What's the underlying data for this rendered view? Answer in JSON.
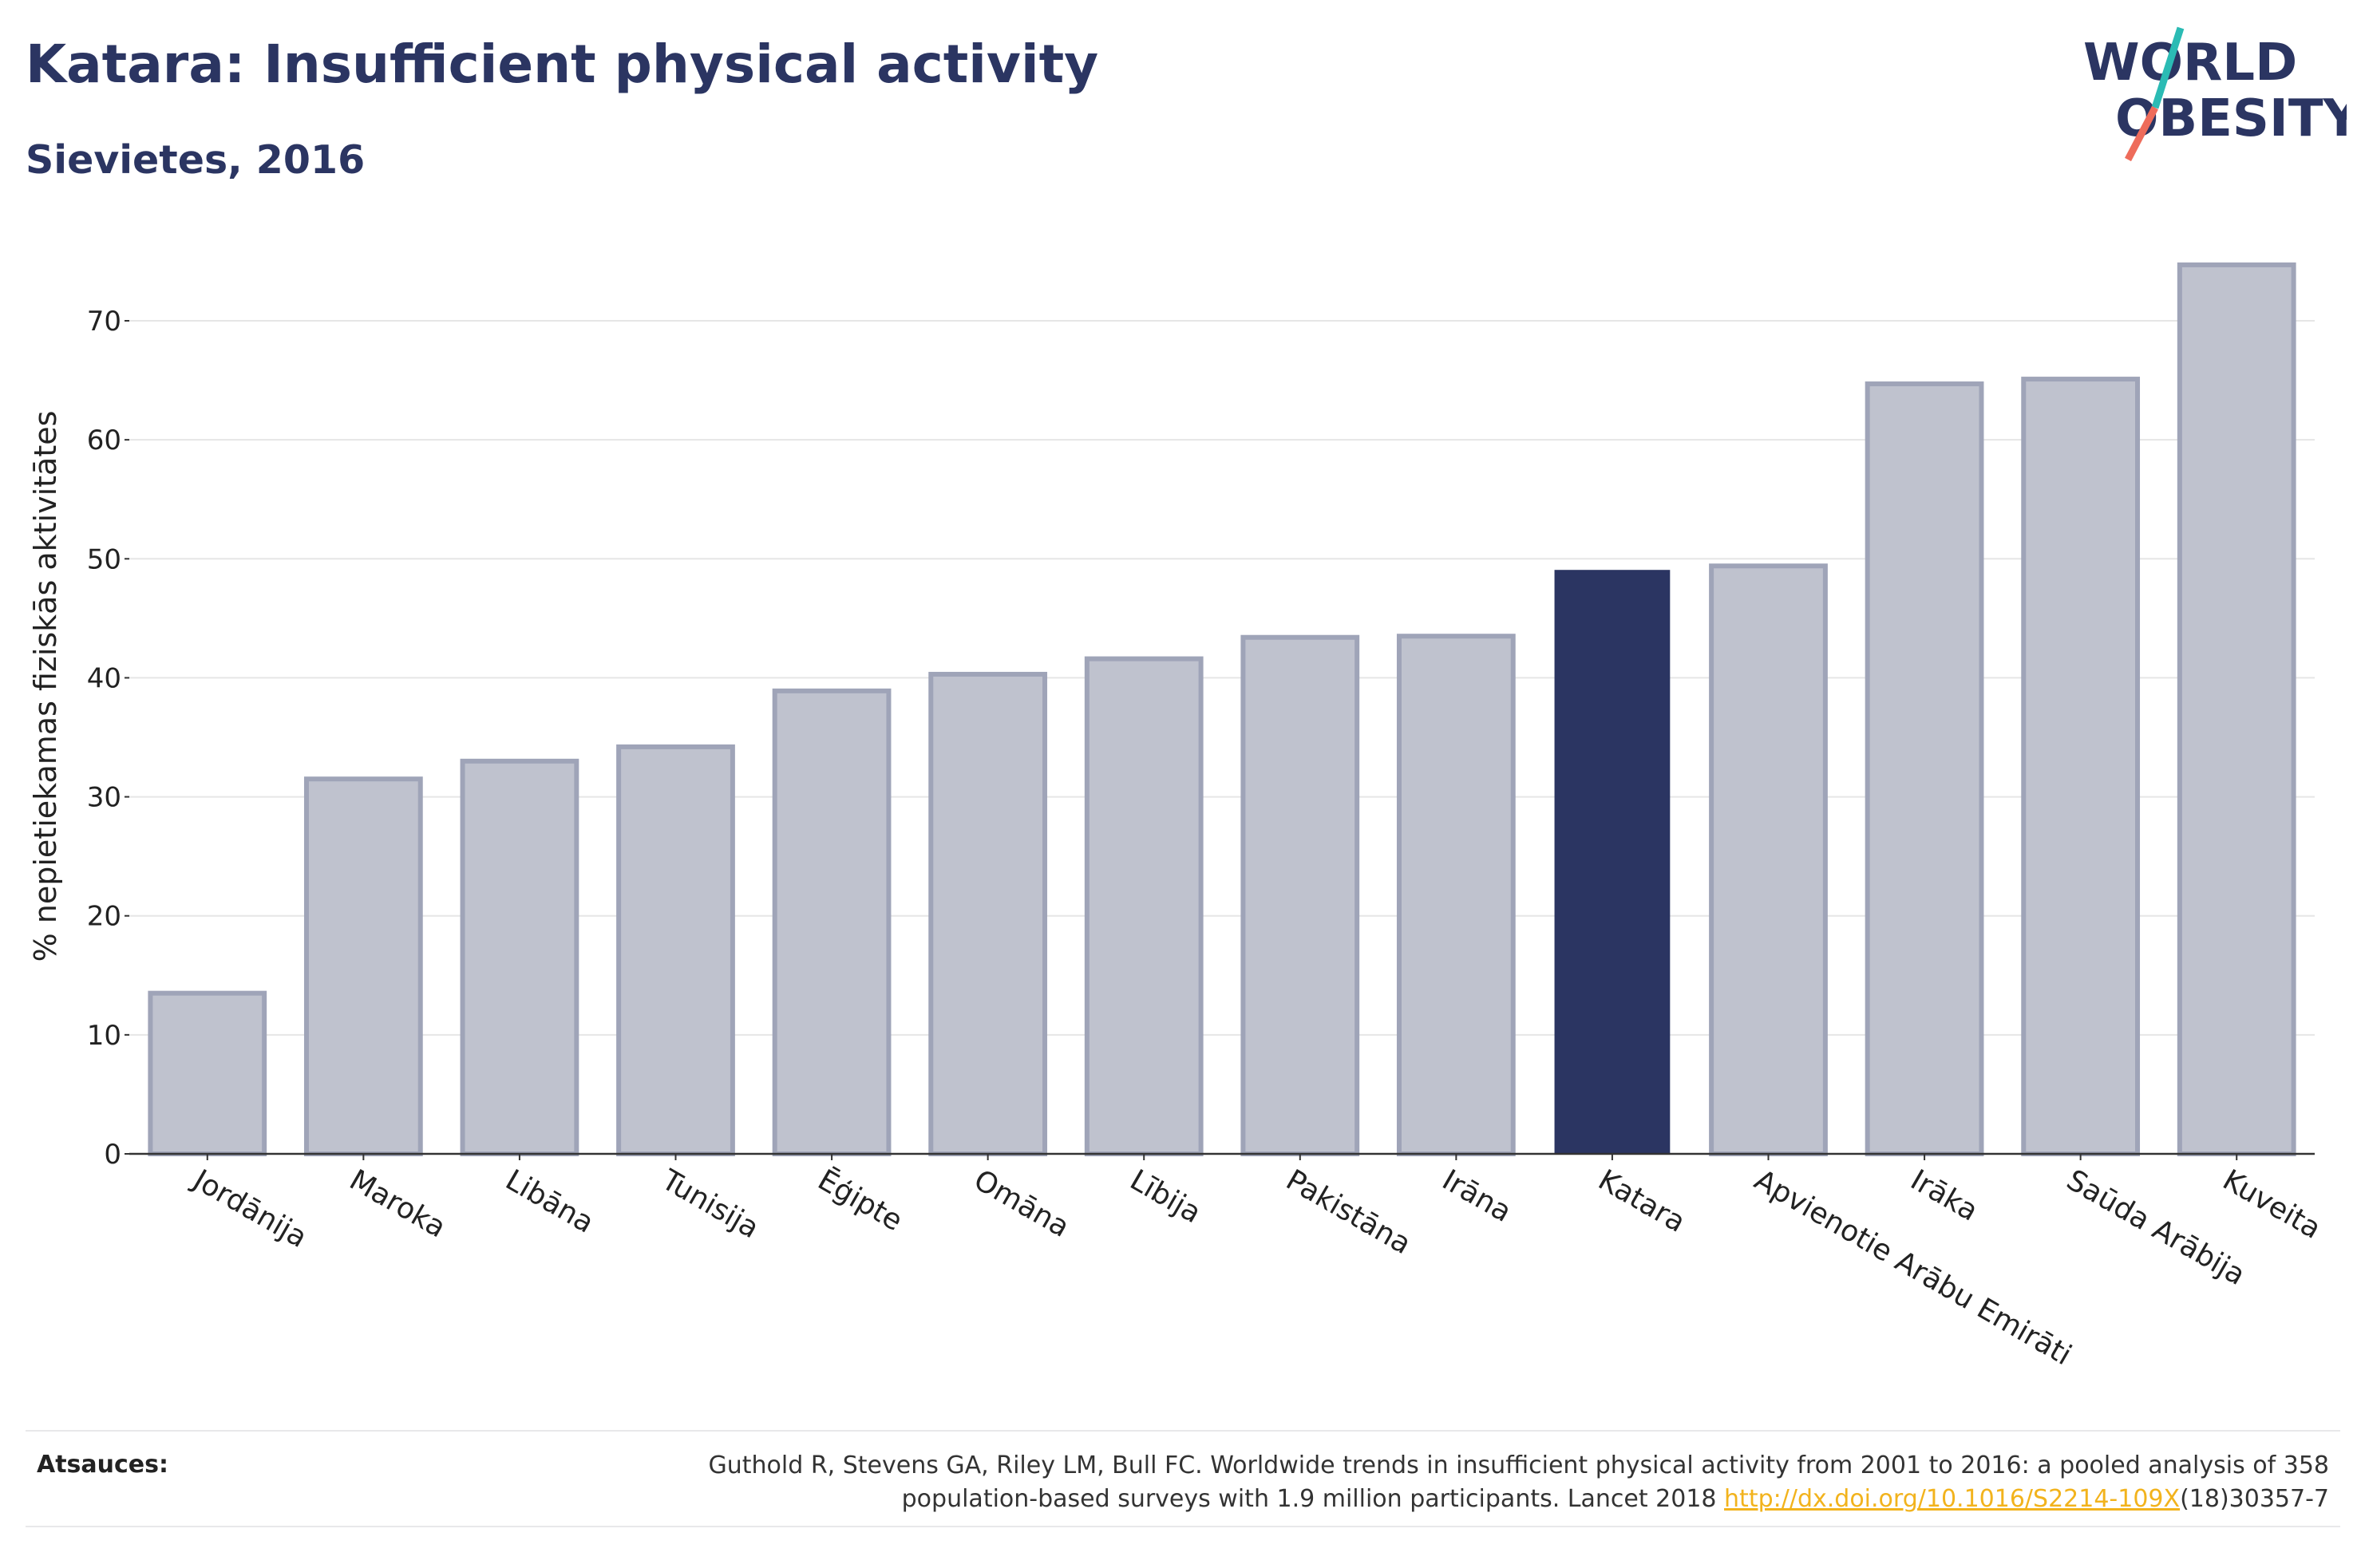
{
  "header": {
    "title": "Katara: Insufficient physical activity",
    "subtitle": "Sievietes, 2016"
  },
  "logo": {
    "line1": "WORLD",
    "line2": "OBESITY",
    "colors": {
      "text": "#2b3562",
      "teal": "#2bbbb4",
      "coral": "#ee6c5b"
    }
  },
  "chart_data": {
    "type": "bar",
    "ylabel": "% nepietiekamas fiziskās aktivitātes",
    "xlabel": "",
    "ylim": [
      0,
      77
    ],
    "yticks": [
      0,
      10,
      20,
      30,
      40,
      50,
      60,
      70
    ],
    "grid": true,
    "categories": [
      "Jordānija",
      "Maroka",
      "Libāna",
      "Tunisija",
      "Ēģipte",
      "Omāna",
      "Lībija",
      "Pakistāna",
      "Irāna",
      "Katara",
      "Apvienotie Arābu Emirāti",
      "Irāka",
      "Saūda Arābija",
      "Kuveita"
    ],
    "values": [
      13.5,
      31.5,
      33.0,
      34.2,
      38.9,
      40.3,
      41.6,
      43.4,
      43.5,
      49.0,
      49.4,
      64.7,
      65.1,
      74.7
    ],
    "highlight": "Katara",
    "colors": {
      "highlight": "#2b3562",
      "bar_fill": "#bfc2ce",
      "bar_stroke": "#9fa4b8",
      "grid": "#e6e6e6",
      "axis": "#333333"
    }
  },
  "footer": {
    "label": "Atsauces:",
    "line1": "Guthold R, Stevens GA, Riley LM, Bull FC. Worldwide trends in insufficient physical activity from 2001 to 2016: a pooled analysis of 358",
    "line2_prefix": "population-based surveys with 1.9 million participants. Lancet 2018 ",
    "link_text": "http://dx.doi.org/10.1016/S2214-109X",
    "line2_suffix": "(18)30357-7"
  }
}
